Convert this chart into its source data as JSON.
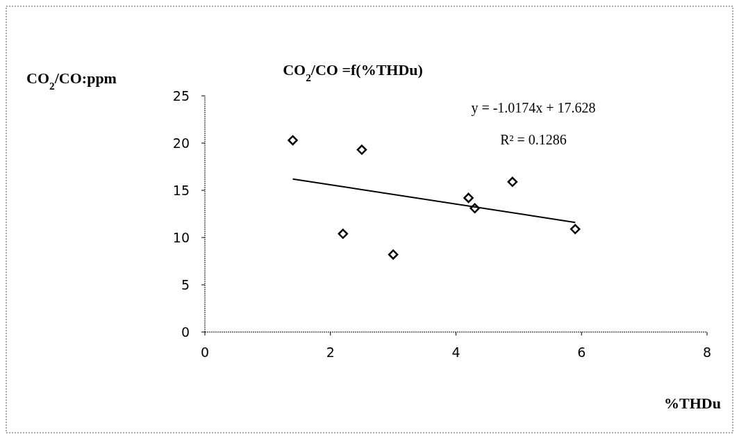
{
  "chart_data": {
    "type": "scatter",
    "title": "CO$_{2}$/CO =f(%THDu)",
    "ylabel": "CO$_{2}$/CO:ppm",
    "xlabel": "%THDu",
    "x": [
      1.4,
      2.2,
      2.5,
      3.0,
      4.2,
      4.3,
      4.9,
      5.9
    ],
    "series": [
      {
        "color": "#000000",
        "marker": "diamond",
        "values": [
          20.3,
          10.4,
          19.3,
          8.2,
          14.2,
          13.1,
          15.9,
          10.9
        ]
      },
      {
        "type": "line",
        "color": "#000000",
        "marker": "none",
        "x": [
          1.4,
          5.9
        ],
        "values": [
          16.2,
          11.6
        ]
      }
    ],
    "xlim": [
      0,
      8
    ],
    "xticks": [
      0,
      2,
      4,
      6,
      8
    ],
    "ylim": [
      0,
      25
    ],
    "yticks": [
      0,
      5,
      10,
      15,
      20,
      25
    ],
    "grid": false,
    "annotations": [
      "y = -1.0174x + 17.628",
      "R² = 0.1286"
    ]
  }
}
